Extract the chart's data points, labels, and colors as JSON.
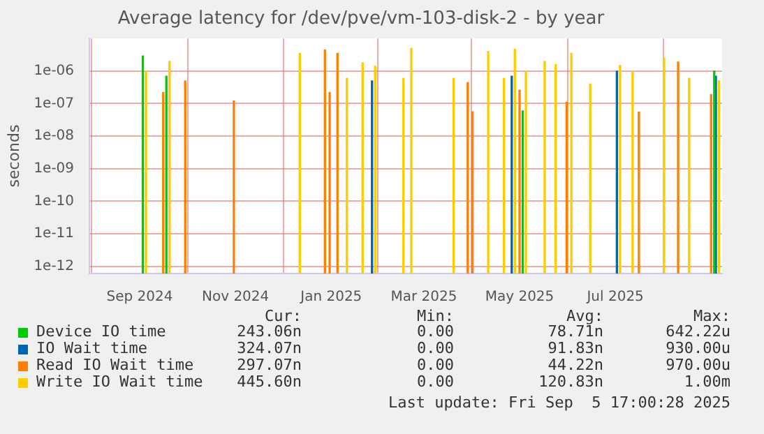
{
  "chart_data": {
    "type": "bar",
    "title": "Average latency for /dev/pve/vm-103-disk-2 - by year",
    "ylabel": "seconds",
    "log": "y",
    "grid": true,
    "legend": "bottom",
    "xlim": [
      "2024-07-31",
      "2025-09-07"
    ],
    "xticks": [
      {
        "value": "2024-09-01",
        "label": "Sep 2024"
      },
      {
        "value": "2024-11-01",
        "label": "Nov 2024"
      },
      {
        "value": "2025-01-01",
        "label": "Jan 2025"
      },
      {
        "value": "2025-03-01",
        "label": "Mar 2025"
      },
      {
        "value": "2025-05-01",
        "label": "May 2025"
      },
      {
        "value": "2025-07-01",
        "label": "Jul 2025"
      }
    ],
    "ylim": [
      6e-13,
      1e-05
    ],
    "yticks": [
      {
        "value": 1e-12,
        "label": "1e-12"
      },
      {
        "value": 1e-11,
        "label": "1e-11"
      },
      {
        "value": 1e-10,
        "label": "1e-10"
      },
      {
        "value": 1e-09,
        "label": "1e-09"
      },
      {
        "value": 1e-08,
        "label": "1e-08"
      },
      {
        "value": 1e-07,
        "label": "1e-07"
      },
      {
        "value": 1e-06,
        "label": "1e-06"
      }
    ],
    "series": [
      {
        "name": "Device IO time",
        "color": "#00cc00",
        "x": [
          "2024-09-03",
          "2024-09-18",
          "2025-05-03",
          "2025-09-02"
        ],
        "values": [
          2.9e-06,
          7e-07,
          6e-08,
          1e-06
        ]
      },
      {
        "name": "IO Wait time",
        "color": "#0066b3",
        "x": [
          "2025-01-27",
          "2025-04-26",
          "2025-07-02",
          "2025-09-03"
        ],
        "values": [
          5e-07,
          7e-07,
          1e-06,
          7e-07
        ]
      },
      {
        "name": "Read IO Wait time",
        "color": "#ff8000",
        "x": [
          "2024-09-16",
          "2024-09-30",
          "2024-10-31",
          "2024-12-28",
          "2024-12-31",
          "2025-01-05",
          "2025-03-29",
          "2025-04-01",
          "2025-05-01",
          "2025-05-31",
          "2025-07-16",
          "2025-08-10",
          "2025-08-31"
        ],
        "values": [
          2.2e-07,
          5e-07,
          1.2e-07,
          4.5e-06,
          2.2e-07,
          3.5e-06,
          4.4e-07,
          5.6e-08,
          2.6e-07,
          1.1e-07,
          5.5e-08,
          1.9e-06,
          1.9e-07
        ]
      },
      {
        "name": "Write IO Wait time",
        "color": "#ffcc00",
        "x": [
          "2024-09-05",
          "2024-09-20",
          "2024-12-12",
          "2025-01-11",
          "2025-01-21",
          "2025-01-29",
          "2025-02-16",
          "2025-02-21",
          "2025-03-20",
          "2025-04-11",
          "2025-04-21",
          "2025-04-28",
          "2025-05-05",
          "2025-05-17",
          "2025-05-24",
          "2025-06-03",
          "2025-06-15",
          "2025-07-04",
          "2025-07-12",
          "2025-08-01",
          "2025-08-17",
          "2025-09-05"
        ],
        "values": [
          1e-06,
          2e-06,
          3.5e-06,
          6e-07,
          1.8e-06,
          1.4e-06,
          6e-07,
          5e-06,
          6e-07,
          4e-06,
          6e-07,
          4.7e-06,
          1e-06,
          2e-06,
          1.6e-06,
          3.5e-06,
          4e-07,
          1.5e-06,
          9.5e-07,
          2.5e-06,
          6e-07,
          5e-07
        ]
      }
    ],
    "annotations": [
      "Cur:",
      "Min:",
      "Avg:",
      "Max:",
      "243.06n",
      "0.00",
      "78.71n",
      "642.22u",
      "324.07n",
      "0.00",
      "91.83n",
      "930.00u",
      "297.07n",
      "0.00",
      "44.22n",
      "970.00u",
      "445.60n",
      "0.00",
      "120.83n",
      "1.00m",
      "Last update: Fri Sep  5 17:00:28 2025"
    ]
  }
}
